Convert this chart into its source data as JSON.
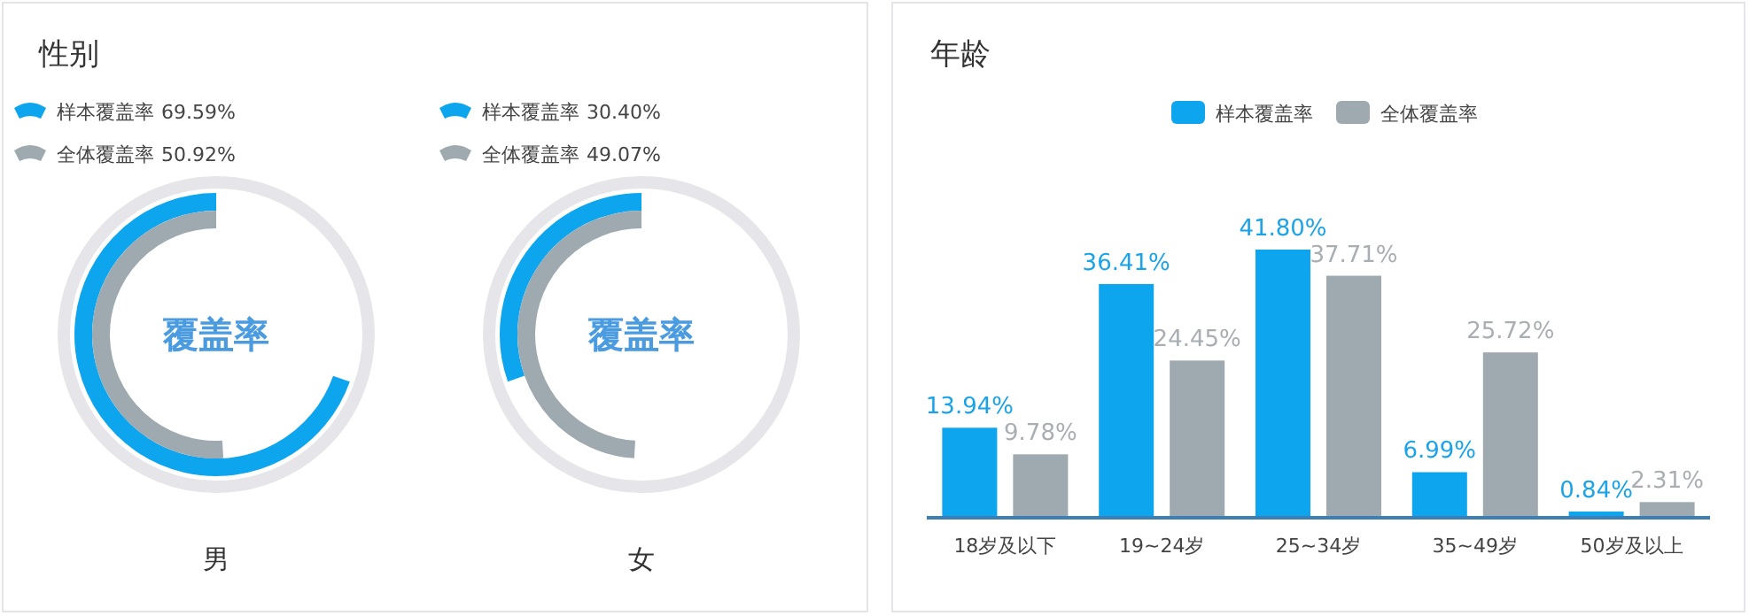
{
  "chart_data": [
    {
      "type": "other",
      "title": "性别",
      "xlabel": "男",
      "annotations": [
        "覆盖率"
      ],
      "categories": [
        "样本覆盖率",
        "全体覆盖率"
      ],
      "values": [
        69.59,
        50.92
      ],
      "value_labels": [
        "69.59%",
        "50.92%"
      ],
      "colors": [
        "#0ea5ef",
        "#9eaab0"
      ]
    },
    {
      "type": "other",
      "xlabel": "女",
      "annotations": [
        "覆盖率"
      ],
      "categories": [
        "样本覆盖率",
        "全体覆盖率"
      ],
      "values": [
        30.4,
        49.07
      ],
      "value_labels": [
        "30.40%",
        "49.07%"
      ],
      "colors": [
        "#0ea5ef",
        "#9eaab0"
      ]
    },
    {
      "type": "bar",
      "title": "年龄",
      "categories": [
        "18岁及以下",
        "19~24岁",
        "25~34岁",
        "35~49岁",
        "50岁及以上"
      ],
      "legend": "top",
      "series": [
        {
          "name": "样本覆盖率",
          "color": "#0ea5ef",
          "values": [
            13.94,
            36.41,
            41.8,
            6.99,
            0.84
          ],
          "value_labels": [
            "13.94%",
            "36.41%",
            "41.80%",
            "6.99%",
            "0.84%"
          ]
        },
        {
          "name": "全体覆盖率",
          "color": "#9eaab0",
          "values": [
            9.78,
            24.45,
            37.71,
            25.72,
            2.31
          ],
          "value_labels": [
            "9.78%",
            "24.45%",
            "37.71%",
            "25.72%",
            "2.31%"
          ]
        }
      ]
    }
  ]
}
